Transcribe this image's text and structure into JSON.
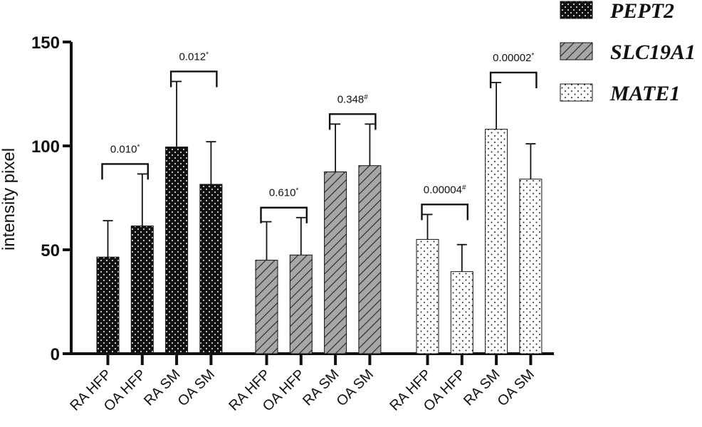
{
  "chart_data": {
    "type": "bar",
    "title": "",
    "xlabel": "",
    "ylabel": "intensity pixel",
    "ylim": [
      0,
      150
    ],
    "yticks": [
      0,
      50,
      100,
      150
    ],
    "categories": [
      "RA HFP",
      "OA HFP",
      "RA SM",
      "OA SM"
    ],
    "series": [
      {
        "name": "PEPT2",
        "pattern": "black-dots",
        "values": [
          46.5,
          61.5,
          99.5,
          81.5
        ],
        "errors": [
          17.5,
          25,
          31.5,
          20.5
        ],
        "comparisons": [
          {
            "between": [
              0,
              1
            ],
            "label": "0.010",
            "mark": "*"
          },
          {
            "between": [
              2,
              3
            ],
            "label": "0.012",
            "mark": "*"
          }
        ]
      },
      {
        "name": "SLC19A1",
        "pattern": "gray-diagonal",
        "values": [
          45,
          47.5,
          87.5,
          90.5
        ],
        "errors": [
          18.5,
          18,
          23,
          20
        ],
        "comparisons": [
          {
            "between": [
              0,
              1
            ],
            "label": "0.610",
            "mark": "*"
          },
          {
            "between": [
              2,
              3
            ],
            "label": "0.348",
            "mark": "#"
          }
        ]
      },
      {
        "name": "MATE1",
        "pattern": "white-dots",
        "values": [
          55,
          39.5,
          108,
          84
        ],
        "errors": [
          12,
          13,
          22.5,
          17
        ],
        "comparisons": [
          {
            "between": [
              0,
              1
            ],
            "label": "0.00004",
            "mark": "#"
          },
          {
            "between": [
              2,
              3
            ],
            "label": "0.00002",
            "mark": "*"
          }
        ]
      }
    ],
    "legend": {
      "position": "top-right"
    }
  },
  "colors": {
    "axis": "#111111",
    "pept2_fill": "#111111",
    "slc19a1_fill": "#a6a6a6",
    "mate1_fill": "#ffffff"
  }
}
